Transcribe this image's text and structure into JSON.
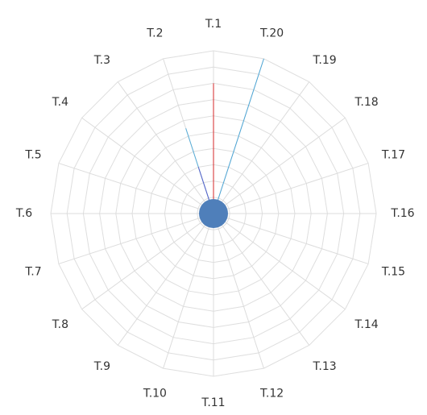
{
  "chart_data": {
    "type": "radar",
    "title": "",
    "axis_labels": [
      "T.1",
      "T.20",
      "T.19",
      "T.18",
      "T.17",
      "T.16",
      "T.15",
      "T.14",
      "T.13",
      "T.12",
      "T.11",
      "T.10",
      "T.9",
      "T.8",
      "T.7",
      "T.6",
      "T.5",
      "T.4",
      "T.3",
      "T.2"
    ],
    "rmax": 100,
    "ring_count": 10,
    "grid": true,
    "legend": "none",
    "series": [
      {
        "color": "#d62728",
        "values": [
          80,
          0,
          0,
          0,
          0,
          0,
          0,
          0,
          0,
          0,
          0,
          0,
          0,
          0,
          0,
          0,
          0,
          0,
          0,
          0
        ]
      },
      {
        "color": "#4da6d6",
        "values": [
          0,
          100,
          0,
          0,
          0,
          0,
          0,
          0,
          0,
          0,
          0,
          0,
          0,
          0,
          0,
          0,
          0,
          0,
          0,
          0
        ]
      },
      {
        "color": "#5aaed8",
        "values": [
          0,
          0,
          0,
          0,
          0,
          0,
          0,
          0,
          0,
          0,
          0,
          0,
          0,
          0,
          0,
          0,
          0,
          0,
          0,
          55
        ]
      },
      {
        "color": "#5b63c9",
        "values": [
          0,
          0,
          0,
          0,
          0,
          0,
          0,
          0,
          0,
          0,
          0,
          0,
          0,
          0,
          0,
          0,
          0,
          0,
          0,
          30
        ]
      }
    ],
    "center_marker_color": "#4f7fba"
  }
}
